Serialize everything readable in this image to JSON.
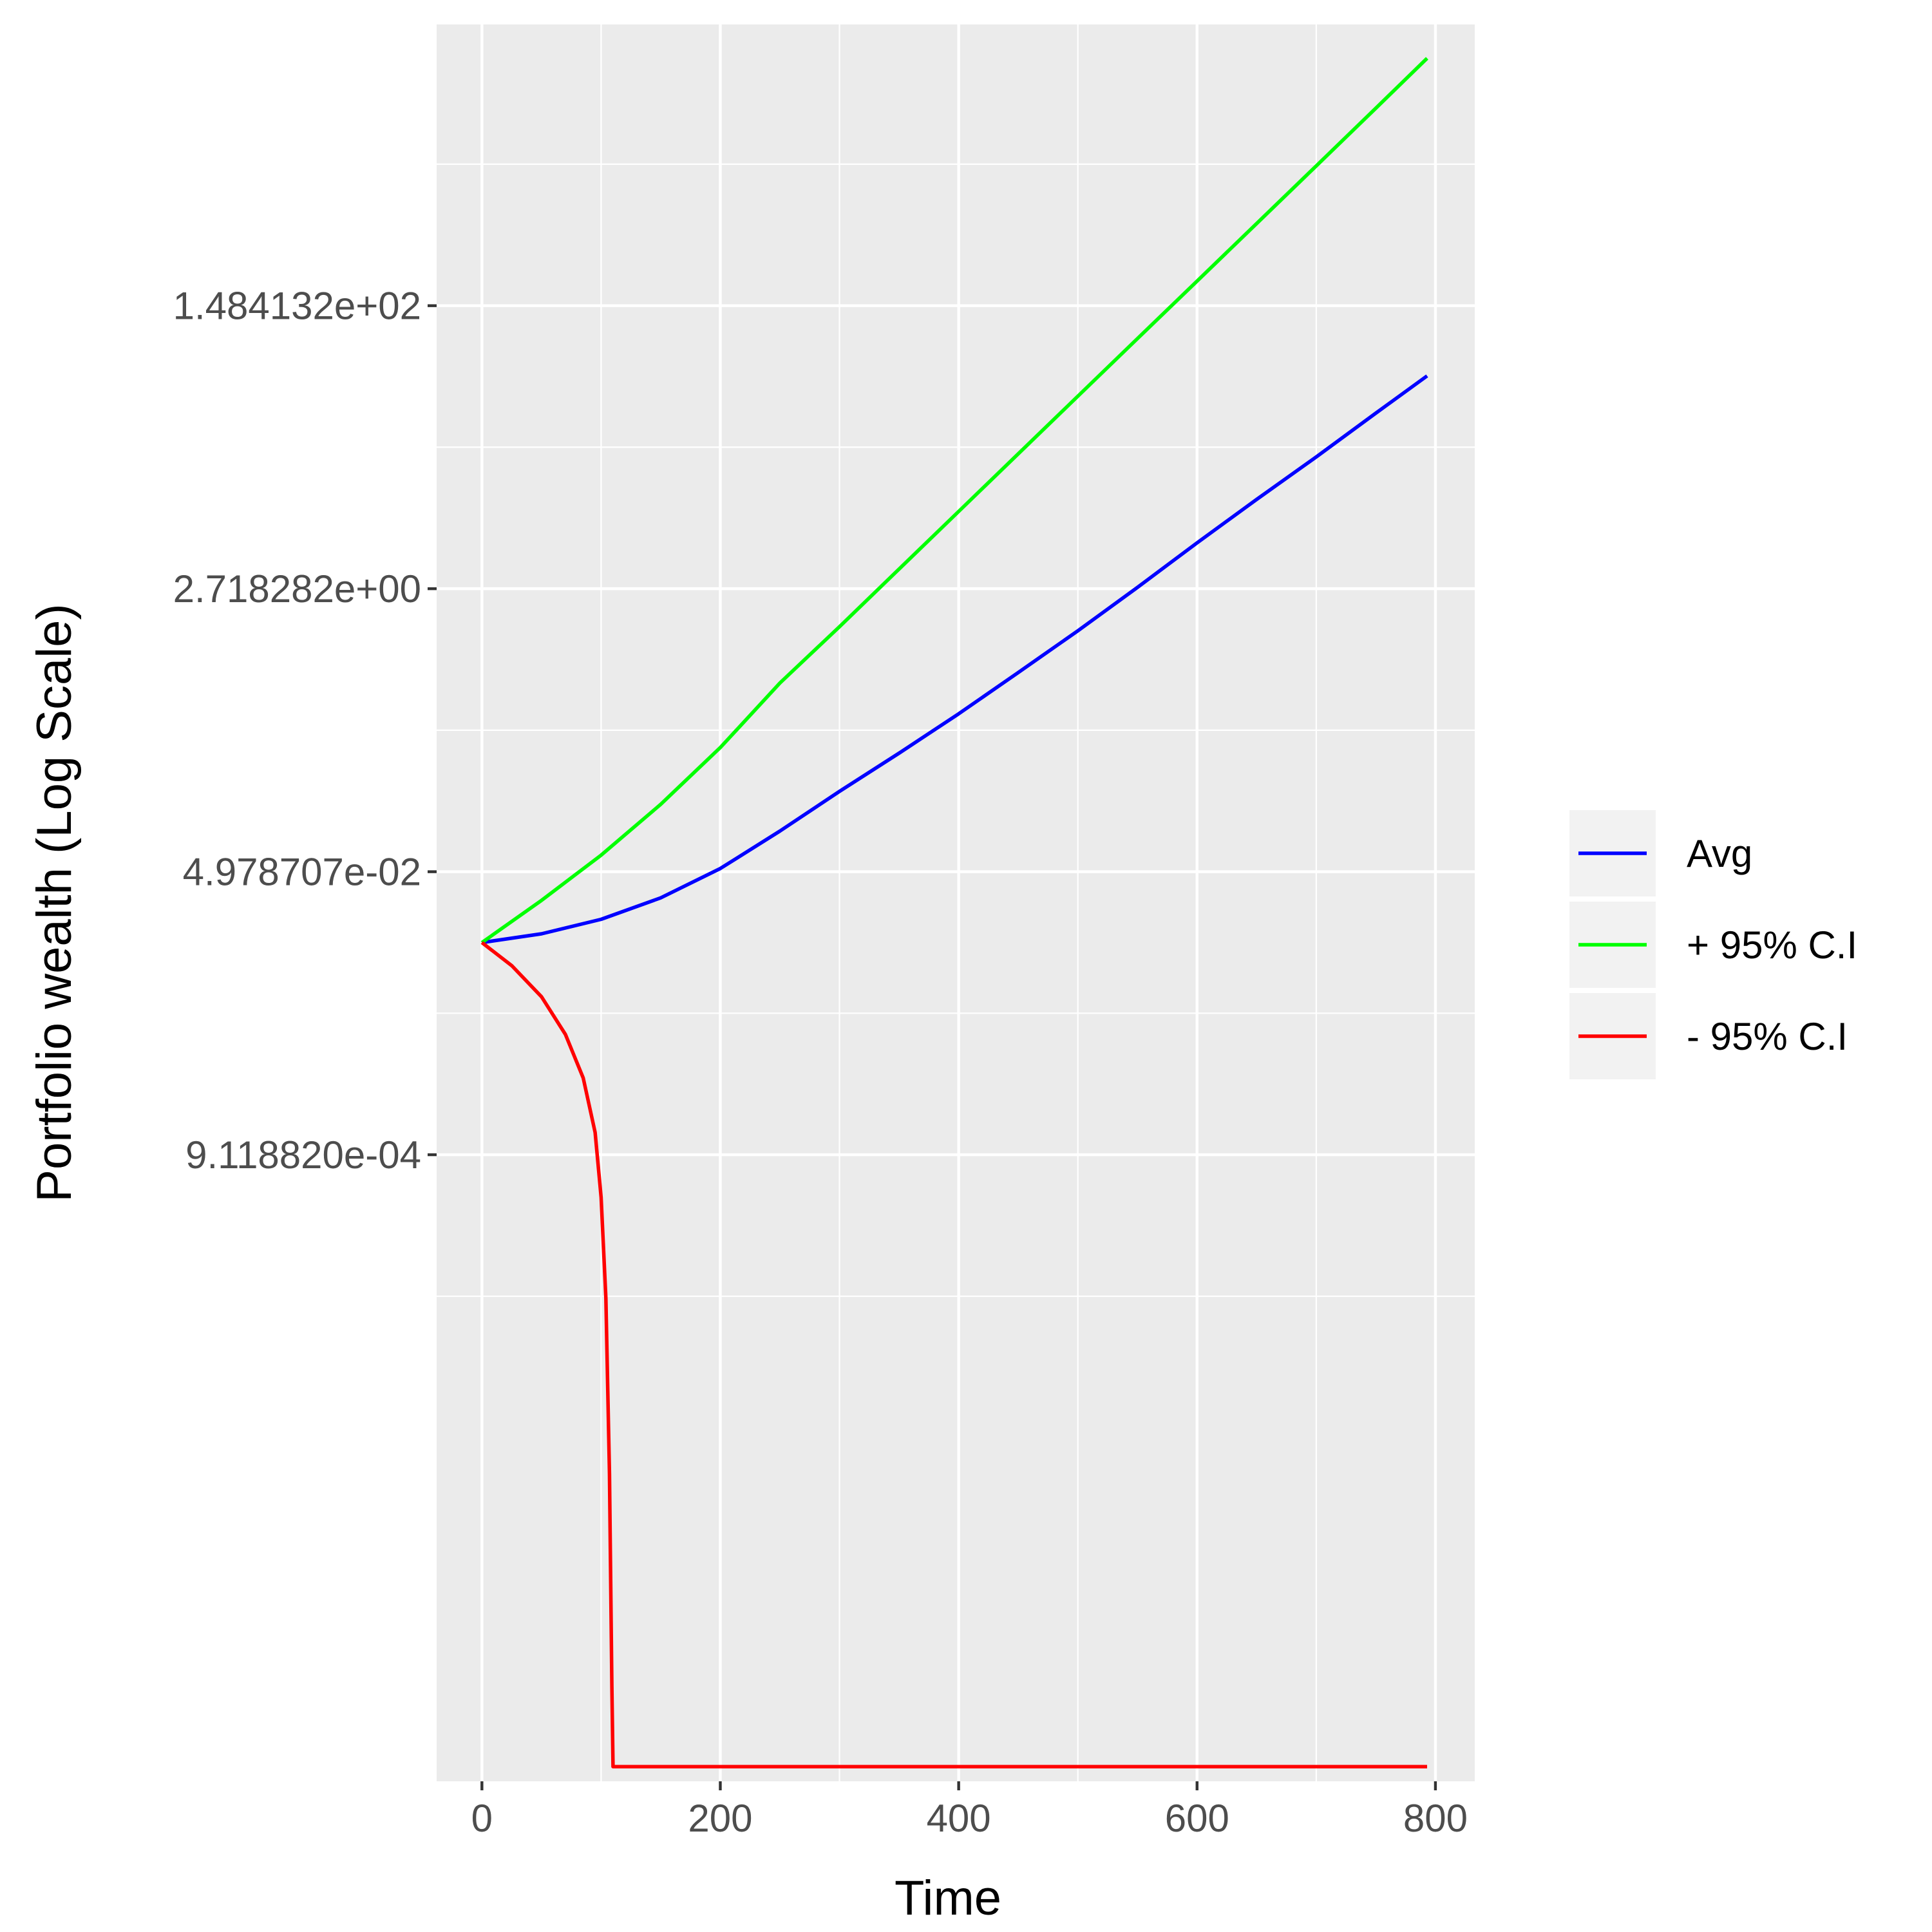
{
  "chart_data": {
    "type": "line",
    "title": "",
    "xlabel": "Time",
    "ylabel": "Portfolio wealth (Log Scale)",
    "y_scale": "log",
    "xlim": [
      -38,
      833
    ],
    "ylim": [
      1.3e-07,
      7900
    ],
    "x_ticks": [
      0,
      200,
      400,
      600,
      800
    ],
    "x_tick_labels": [
      "0",
      "200",
      "400",
      "600",
      "800"
    ],
    "y_ticks": [
      0.000911882,
      0.04978707,
      2.718282,
      148.4132
    ],
    "y_tick_labels": [
      "9.118820e-04",
      "4.978707e-02",
      "2.718282e+00",
      "1.484132e+02"
    ],
    "grid": true,
    "legend_position": "right",
    "panel_background": "#ebebeb",
    "grid_color": "#ffffff",
    "series": [
      {
        "name": "Avg",
        "color": "#0000ff",
        "x": [
          0,
          50,
          100,
          150,
          200,
          250,
          300,
          350,
          400,
          450,
          500,
          550,
          600,
          650,
          700,
          750,
          793
        ],
        "y": [
          0.0183,
          0.0207,
          0.0254,
          0.0344,
          0.0521,
          0.0884,
          0.155,
          0.266,
          0.464,
          0.832,
          1.5,
          2.77,
          5.2,
          9.6,
          17.5,
          32.5,
          55
        ]
      },
      {
        "name": "+ 95% C.I",
        "color": "#00ff00",
        "x": [
          0,
          50,
          100,
          150,
          200,
          250,
          300,
          350,
          400,
          450,
          500,
          550,
          600,
          650,
          700,
          750,
          793
        ],
        "y": [
          0.0183,
          0.0332,
          0.0629,
          0.129,
          0.288,
          0.717,
          1.59,
          3.59,
          8.1,
          18.3,
          41.3,
          93.2,
          210,
          474,
          1070,
          2420,
          4900
        ]
      },
      {
        "name": "- 95% C.I",
        "color": "#ff0000",
        "x": [
          0,
          25,
          50,
          70,
          85,
          95,
          100,
          104,
          107,
          109,
          110,
          150,
          200,
          300,
          400,
          500,
          600,
          700,
          793
        ],
        "y": [
          0.0183,
          0.0132,
          0.0085,
          0.005,
          0.0027,
          0.00125,
          0.0005,
          0.00012,
          1e-05,
          5e-07,
          1.6e-07,
          1.6e-07,
          1.6e-07,
          1.6e-07,
          1.6e-07,
          1.6e-07,
          1.6e-07,
          1.6e-07,
          1.6e-07
        ]
      }
    ]
  }
}
